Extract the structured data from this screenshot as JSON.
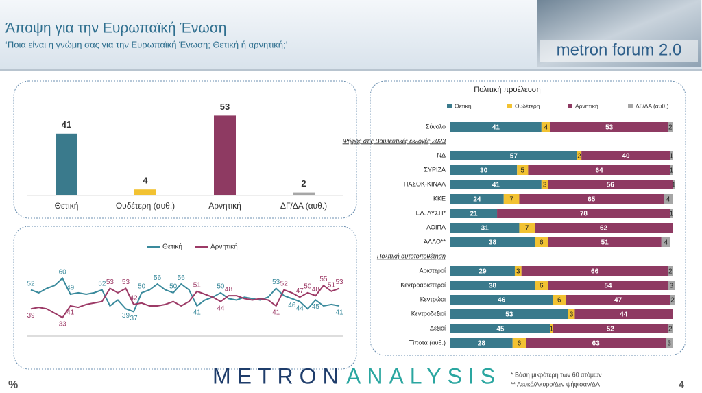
{
  "header": {
    "title": "Άποψη για την Ευρωπαϊκή Ένωση",
    "subtitle": "‘Ποια είναι η γνώμη σας για την Ευρωπαϊκή Ένωση; Θετική ή αρνητική;’",
    "logo": "metron forum 2.0"
  },
  "chart_data": [
    {
      "type": "bar",
      "categories": [
        "Θετική",
        "Ουδέτερη (αυθ.)",
        "Αρνητική",
        "ΔΓ/ΔΑ (αυθ.)"
      ],
      "values": [
        41,
        4,
        53,
        2
      ],
      "colors": [
        "#3a7a8c",
        "#f2c232",
        "#8e3a62",
        "#a6a6a6"
      ],
      "ylim": [
        0,
        60
      ]
    },
    {
      "type": "line",
      "categories": [
        null,
        null,
        null,
        null,
        null,
        null,
        null,
        null,
        null,
        null,
        null,
        null,
        null,
        null,
        null,
        null,
        null,
        null,
        null,
        null,
        null,
        null,
        null,
        null,
        null,
        null,
        null,
        null,
        null,
        null,
        null,
        null,
        null,
        null,
        null,
        null,
        null,
        null,
        null,
        null
      ],
      "ylim": [
        25,
        65
      ],
      "series": [
        {
          "name": "Θετική",
          "color": "#3a8a9c",
          "values": [
            52,
            50,
            53,
            55,
            60,
            49,
            50,
            49,
            50,
            52,
            41,
            45,
            39,
            37,
            50,
            52,
            56,
            52,
            50,
            56,
            52,
            41,
            45,
            47,
            50,
            46,
            45,
            47,
            46,
            45,
            47,
            53,
            48,
            46,
            44,
            39,
            45,
            41,
            42,
            41
          ],
          "labeled": [
            0,
            4,
            5,
            9,
            12,
            13,
            14,
            16,
            18,
            19,
            21,
            24,
            31,
            33,
            34,
            36,
            39
          ]
        },
        {
          "name": "Αρνητική",
          "color": "#9c3a66",
          "values": [
            39,
            40,
            39,
            36,
            33,
            41,
            40,
            42,
            43,
            44,
            53,
            50,
            53,
            42,
            43,
            41,
            41,
            42,
            44,
            41,
            44,
            51,
            49,
            47,
            44,
            48,
            48,
            46,
            45,
            46,
            45,
            41,
            52,
            50,
            47,
            50,
            48,
            55,
            51,
            53
          ],
          "labeled": [
            0,
            4,
            5,
            10,
            12,
            13,
            21,
            24,
            25,
            31,
            32,
            34,
            35,
            36,
            37,
            38,
            39
          ]
        }
      ]
    },
    {
      "type": "stacked_bar_h",
      "title": "Πολιτική προέλευση",
      "xlim": [
        0,
        100
      ],
      "series": [
        {
          "name": "Θετική",
          "color": "#3a7a8c"
        },
        {
          "name": "Ουδέτερη",
          "color": "#f2c232"
        },
        {
          "name": "Αρνητική",
          "color": "#8e3a62"
        },
        {
          "name": "ΔΓ/ΔΑ (αυθ.)",
          "color": "#a6a6a6"
        }
      ],
      "groups": [
        {
          "categories": [
            "Σύνολο"
          ],
          "values": [
            [
              41
            ],
            [
              4
            ],
            [
              53
            ],
            [
              2
            ]
          ]
        },
        {
          "title": "Ψήφος στις Βουλευτικές εκλογές 2023",
          "categories": [
            "ΝΔ",
            "ΣΥΡΙΖΑ",
            "ΠΑΣΟΚ-ΚΙΝΑΛ",
            "ΚΚΕ",
            "ΕΛ. ΛΥΣΗ*",
            "ΛΟΙΠΑ",
            "ΆΛΛΟ**"
          ],
          "values": [
            [
              57,
              30,
              41,
              24,
              21,
              31,
              38
            ],
            [
              2,
              5,
              3,
              7,
              null,
              7,
              6
            ],
            [
              40,
              64,
              56,
              65,
              78,
              62,
              51
            ],
            [
              1,
              1,
              1,
              4,
              1,
              null,
              4
            ]
          ]
        },
        {
          "title": "Πολιτική αυτοτοποθέτηση",
          "categories": [
            "Αριστεροί",
            "Κεντροαριστεροί",
            "Κεντρώοι",
            "Κεντροδεξιοί",
            "Δεξιοί",
            "Τίποτα (αυθ.)"
          ],
          "values": [
            [
              29,
              38,
              46,
              53,
              45,
              28
            ],
            [
              3,
              6,
              6,
              3,
              1,
              6
            ],
            [
              66,
              54,
              47,
              44,
              52,
              63
            ],
            [
              2,
              3,
              2,
              null,
              2,
              3
            ]
          ]
        }
      ]
    }
  ],
  "footer": {
    "unit": "%",
    "brand_left": "METRON",
    "brand_right": "ANALYSIS",
    "note1": "*  Βάση μικρότερη των 60 ατόμων",
    "note2": "** Λευκό/Άκυρο/Δεν ψήφισαν/ΔΑ",
    "page": "4"
  }
}
